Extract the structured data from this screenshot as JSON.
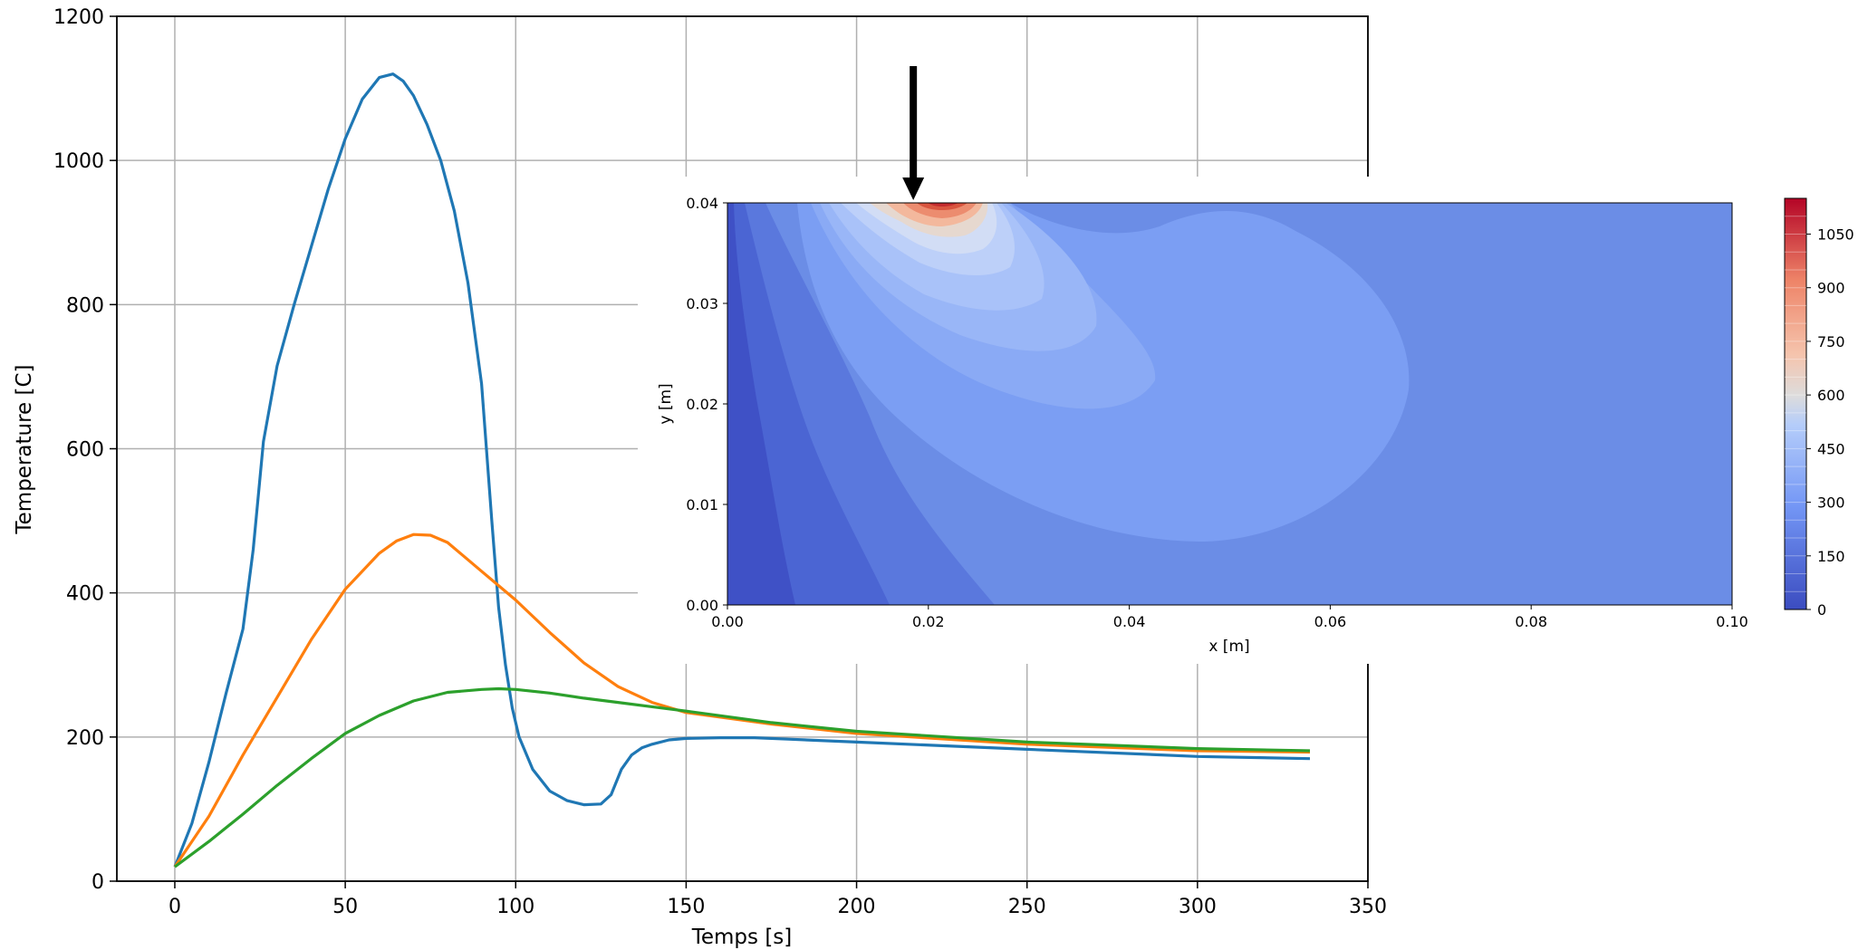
{
  "chart_data": [
    {
      "type": "line",
      "title": "",
      "xlabel": "Temps [s]",
      "ylabel": "Temperature [C]",
      "xlim": [
        -17,
        350
      ],
      "ylim": [
        0,
        1200
      ],
      "xticks": [
        0,
        50,
        100,
        150,
        200,
        250,
        300,
        350
      ],
      "yticks": [
        0,
        200,
        400,
        600,
        800,
        1000,
        1200
      ],
      "grid": true,
      "series": [
        {
          "color": "#1f77b4",
          "x": [
            0,
            5,
            10,
            15,
            20,
            23,
            26,
            30,
            35,
            40,
            45,
            50,
            55,
            60,
            64,
            67,
            70,
            74,
            78,
            82,
            86,
            90,
            93,
            95,
            97,
            99,
            101,
            105,
            110,
            115,
            120,
            125,
            128,
            131,
            134,
            137,
            140,
            145,
            150,
            160,
            170,
            180,
            200,
            250,
            300,
            333
          ],
          "y": [
            20,
            80,
            165,
            260,
            350,
            460,
            610,
            715,
            800,
            880,
            960,
            1030,
            1085,
            1115,
            1120,
            1110,
            1090,
            1050,
            1000,
            930,
            830,
            690,
            500,
            380,
            300,
            240,
            200,
            155,
            125,
            112,
            106,
            107,
            120,
            155,
            175,
            185,
            190,
            196,
            198,
            199,
            199,
            197,
            193,
            183,
            173,
            170
          ]
        },
        {
          "color": "#ff7f0e",
          "x": [
            0,
            10,
            20,
            30,
            40,
            50,
            60,
            65,
            70,
            75,
            80,
            90,
            100,
            110,
            120,
            130,
            140,
            150,
            175,
            200,
            250,
            300,
            333
          ],
          "y": [
            20,
            90,
            175,
            255,
            335,
            405,
            455,
            472,
            481,
            480,
            470,
            430,
            390,
            345,
            303,
            270,
            248,
            234,
            218,
            205,
            190,
            181,
            179
          ]
        },
        {
          "color": "#2ca02c",
          "x": [
            0,
            10,
            20,
            30,
            40,
            50,
            60,
            70,
            80,
            90,
            95,
            100,
            110,
            120,
            130,
            140,
            150,
            175,
            200,
            250,
            300,
            333
          ],
          "y": [
            20,
            55,
            93,
            133,
            170,
            205,
            230,
            250,
            262,
            266,
            267,
            266,
            261,
            254,
            248,
            242,
            236,
            220,
            208,
            193,
            184,
            181
          ]
        }
      ]
    },
    {
      "type": "heatmap",
      "subtype": "filled-contour",
      "title": "",
      "xlabel": "x [m]",
      "ylabel": "y [m]",
      "xlim": [
        0.0,
        0.1
      ],
      "ylim": [
        0.0,
        0.04
      ],
      "xticks": [
        "0.00",
        "0.02",
        "0.04",
        "0.06",
        "0.08",
        "0.10"
      ],
      "yticks": [
        "0.00",
        "0.01",
        "0.02",
        "0.03",
        "0.04"
      ],
      "colormap": "coolwarm",
      "colorbar_ticks": [
        "0",
        "150",
        "300",
        "450",
        "600",
        "750",
        "900",
        "1050"
      ],
      "colorbar_range": [
        0,
        1150
      ],
      "heat_source_arrow_x": 0.0185
    }
  ]
}
